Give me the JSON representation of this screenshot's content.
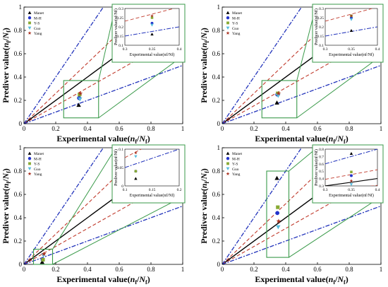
{
  "colors": {
    "identity": "#000000",
    "band_30": "#c0392b",
    "band_50": "#2233bb",
    "zoom_frame": "#3a9a4a",
    "axes": "#000000"
  },
  "shared_labels": {
    "xlabel_prefix": "Experimental value(",
    "ylabel_prefix": "Prediver value(",
    "nf_n": "n",
    "nf_sub_f": "f",
    "nf_slash": "/",
    "nf_N": "N",
    "nf_sub_N": "f",
    "nf_close": ")"
  },
  "legend_entries": [
    {
      "name": "Manet",
      "marker": "triangle-up",
      "color": "#000000"
    },
    {
      "name": "M-H",
      "marker": "circle",
      "color": "#2233cc"
    },
    {
      "name": "Y-S",
      "marker": "square",
      "color": "#88aa33"
    },
    {
      "name": "Guo",
      "marker": "triangle-down",
      "color": "#55bbdd"
    },
    {
      "name": "Yang",
      "marker": "star",
      "color": "#aa3322"
    }
  ],
  "chart_data": [
    {
      "type": "scatter",
      "panel": "top-left",
      "xlim": [
        0,
        1
      ],
      "ylim": [
        0,
        1
      ],
      "xticks": [
        "0",
        "0.2",
        "0.4",
        "0.6",
        "0.8",
        "1"
      ],
      "yticks": [
        "0",
        "0.2",
        "0.4",
        "0.6",
        "0.8",
        "1"
      ],
      "reference_lines": [
        "y=x",
        "y=x/1.3",
        "y=1.3x",
        "y=x/2",
        "y=2x"
      ],
      "zoom_box": {
        "x": [
          0.25,
          0.47
        ],
        "y": [
          0.05,
          0.37
        ]
      },
      "points": [
        {
          "series": "Manet",
          "x": 0.35,
          "y": 0.16
        },
        {
          "series": "M-H",
          "x": 0.35,
          "y": 0.22
        },
        {
          "series": "Y-S",
          "x": 0.35,
          "y": 0.25
        },
        {
          "series": "Guo",
          "x": 0.35,
          "y": 0.21
        },
        {
          "series": "Yang",
          "x": 0.35,
          "y": 0.26
        }
      ],
      "inset": {
        "xlim": [
          0.3,
          0.4
        ],
        "ylim": [
          0.1,
          0.3
        ],
        "xticks": [
          "0.3",
          "0.35",
          "0.4"
        ],
        "yticks": [
          "0.1",
          "0.15",
          "0.2",
          "0.25",
          "0.3"
        ]
      }
    },
    {
      "type": "scatter",
      "panel": "top-right",
      "xlim": [
        0,
        1
      ],
      "ylim": [
        0,
        1
      ],
      "xticks": [
        "0",
        "0.2",
        "0.4",
        "0.6",
        "0.8",
        "1"
      ],
      "yticks": [
        "0",
        "0.2",
        "0.4",
        "0.6",
        "0.8",
        "1"
      ],
      "reference_lines": [
        "y=x",
        "y=x/1.3",
        "y=1.3x",
        "y=x/2",
        "y=2x"
      ],
      "zoom_box": {
        "x": [
          0.25,
          0.47
        ],
        "y": [
          0.05,
          0.37
        ]
      },
      "points": [
        {
          "series": "Manet",
          "x": 0.35,
          "y": 0.18
        },
        {
          "series": "M-H",
          "x": 0.35,
          "y": 0.25
        },
        {
          "series": "Y-S",
          "x": 0.35,
          "y": 0.26
        },
        {
          "series": "Guo",
          "x": 0.35,
          "y": 0.24
        },
        {
          "series": "Yang",
          "x": 0.35,
          "y": 0.26
        }
      ],
      "inset": {
        "xlim": [
          0.3,
          0.4
        ],
        "ylim": [
          0.1,
          0.3
        ],
        "xticks": [
          "0.3",
          "0.35",
          "0.4"
        ],
        "yticks": [
          "0.1",
          "0.15",
          "0.2",
          "0.25",
          "0.3"
        ]
      }
    },
    {
      "type": "scatter",
      "panel": "bottom-left",
      "xlim": [
        0,
        1
      ],
      "ylim": [
        0,
        1
      ],
      "xticks": [
        "0",
        "0.2",
        "0.4",
        "0.6",
        "0.8",
        "1"
      ],
      "yticks": [
        "0",
        "0.2",
        "0.4",
        "0.6",
        "0.8",
        "1"
      ],
      "reference_lines": [
        "y=x",
        "y=x/1.3",
        "y=1.3x",
        "y=x/2",
        "y=2x"
      ],
      "zoom_box": {
        "x": [
          0.06,
          0.18
        ],
        "y": [
          0.0,
          0.13
        ]
      },
      "points": [
        {
          "series": "Manet",
          "x": 0.12,
          "y": 0.02
        },
        {
          "series": "M-H",
          "x": 0.12,
          "y": 0.04
        },
        {
          "series": "Y-S",
          "x": 0.12,
          "y": 0.04
        },
        {
          "series": "Guo",
          "x": 0.12,
          "y": 0.08
        },
        {
          "series": "Yang",
          "x": 0.12,
          "y": 0.09
        }
      ],
      "inset": {
        "xlim": [
          0.1,
          0.2
        ],
        "ylim": [
          0,
          0.1
        ],
        "xticks": [
          "0.1",
          "0.15",
          "0.2"
        ],
        "yticks": [
          "0",
          "0.05",
          "0.1"
        ]
      }
    },
    {
      "type": "scatter",
      "panel": "bottom-right",
      "xlim": [
        0,
        1
      ],
      "ylim": [
        0,
        1
      ],
      "xticks": [
        "0",
        "0.2",
        "0.4",
        "0.6",
        "0.8",
        "1"
      ],
      "yticks": [
        "0",
        "0.2",
        "0.4",
        "0.6",
        "0.8",
        "1"
      ],
      "reference_lines": [
        "y=x",
        "y=x/1.3",
        "y=1.3x",
        "y=x/2",
        "y=2x"
      ],
      "zoom_box": {
        "x": [
          0.28,
          0.42
        ],
        "y": [
          0.06,
          0.8
        ]
      },
      "points": [
        {
          "series": "Manet",
          "x": 0.35,
          "y": 0.74
        },
        {
          "series": "M-H",
          "x": 0.35,
          "y": 0.44
        },
        {
          "series": "Y-S",
          "x": 0.35,
          "y": 0.49
        },
        {
          "series": "Guo",
          "x": 0.35,
          "y": 0.32
        },
        {
          "series": "Yang",
          "x": 0.35,
          "y": 0.37
        }
      ],
      "inset": {
        "xlim": [
          0.3,
          0.4
        ],
        "ylim": [
          0.3,
          0.8
        ],
        "xticks": [
          "0.3",
          "0.35",
          "0.4"
        ],
        "yticks": [
          "0.3",
          "0.4",
          "0.5",
          "0.6",
          "0.7",
          "0.8"
        ]
      }
    }
  ]
}
